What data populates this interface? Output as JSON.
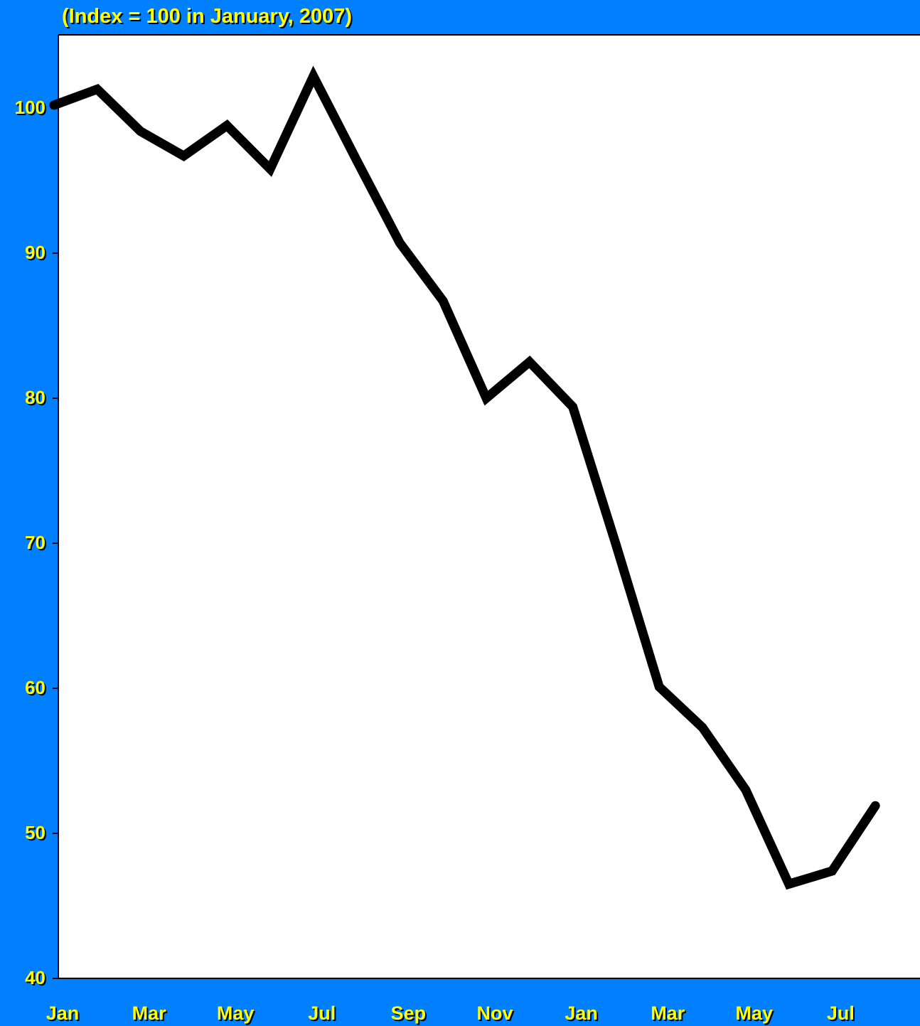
{
  "colors": {
    "background": "#0080ff",
    "plot_background": "#ffffff",
    "label_text": "#ffff00",
    "label_shadow": "#000000",
    "title_text": "#ffff00",
    "line": "#000000"
  },
  "chart_data": {
    "type": "line",
    "title": "(Index = 100 in January, 2007)",
    "xlabel": "",
    "ylabel": "",
    "ylim": [
      40,
      105
    ],
    "yticks": [
      40,
      50,
      60,
      70,
      80,
      90,
      100
    ],
    "x": [
      "Jan 2007",
      "Feb 2007",
      "Mar 2007",
      "Apr 2007",
      "May 2007",
      "Jun 2007",
      "Jul 2007",
      "Aug 2007",
      "Sep 2007",
      "Oct 2007",
      "Nov 2007",
      "Dec 2007",
      "Jan 2008",
      "Feb 2008",
      "Mar 2008",
      "Apr 2008",
      "May 2008",
      "Jun 2008",
      "Jul 2008",
      "Aug 2008"
    ],
    "xtick_labels": [
      "Jan",
      "Mar",
      "May",
      "Jul",
      "Sep",
      "Nov",
      "Jan",
      "Mar",
      "May",
      "Jul"
    ],
    "grid": false,
    "series": [
      {
        "values": [
          100.2,
          101.3,
          98.4,
          96.7,
          98.8,
          95.8,
          102.2,
          96.4,
          90.7,
          86.7,
          80.0,
          82.5,
          79.4,
          69.9,
          60.1,
          57.3,
          53.0,
          46.5,
          47.4,
          51.9
        ]
      }
    ]
  }
}
